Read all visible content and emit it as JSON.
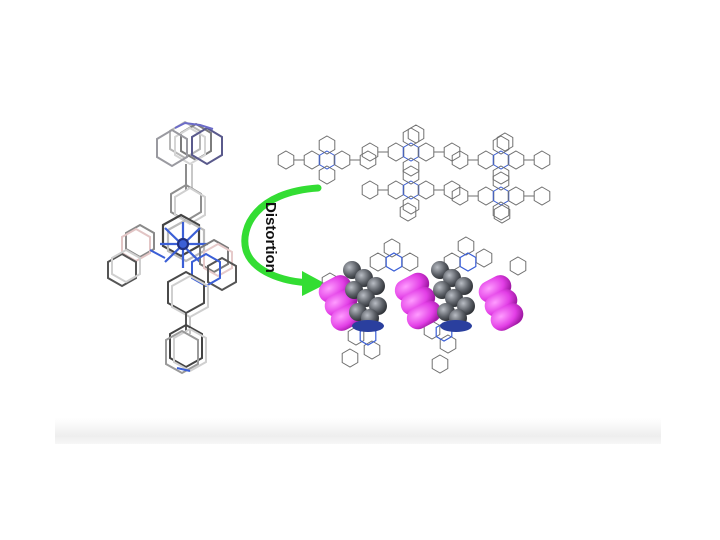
{
  "diagram": {
    "arrow_label": "Distortion",
    "arrow_color": "#33dd33",
    "atom_colors": {
      "carbon_frame": "#8f8f8f",
      "light_frame": "#cfcfcf",
      "nitrogen": "#3b5fd6",
      "metal_stack": "#5c6067",
      "guest_molecule": "#e23ee6"
    },
    "panels": [
      {
        "name": "overlaid-molecular-structures",
        "kind": "wireframe-overlay"
      },
      {
        "name": "undistorted-packing",
        "kind": "wireframe-packing"
      },
      {
        "name": "distorted-packing-with-guests",
        "kind": "space-filling-stack"
      }
    ]
  }
}
